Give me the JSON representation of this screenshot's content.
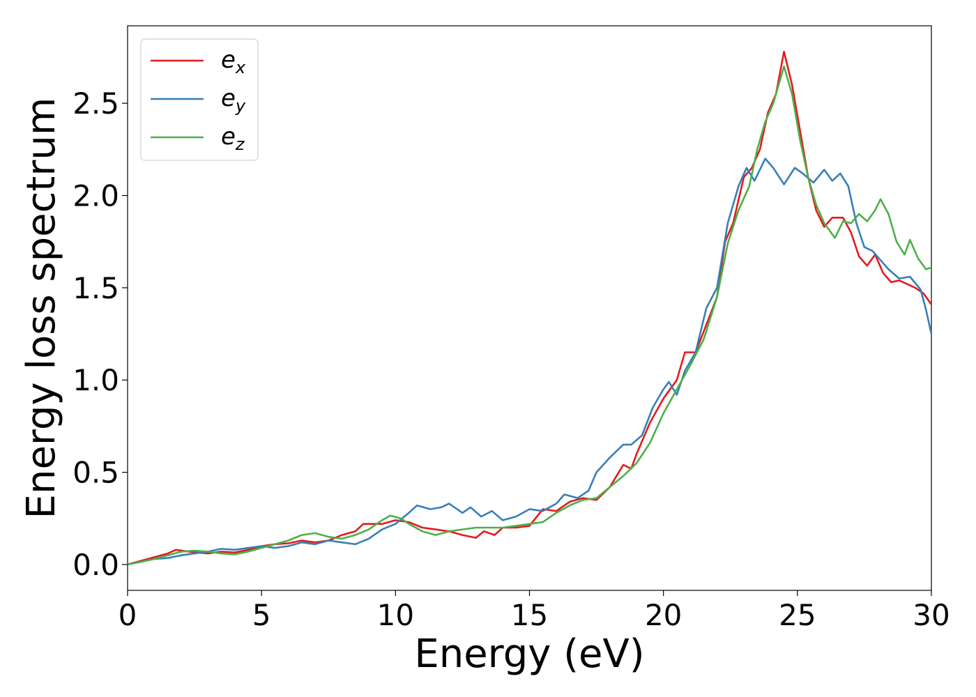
{
  "chart_data": {
    "type": "line",
    "xlabel": "Energy (eV)",
    "ylabel": "Energy loss spectrum",
    "xlim": [
      0,
      30
    ],
    "ylim": [
      -0.14,
      2.92
    ],
    "xticks": [
      0,
      5,
      10,
      15,
      20,
      25,
      30
    ],
    "xtick_labels": [
      "0",
      "5",
      "10",
      "15",
      "20",
      "25",
      "30"
    ],
    "yticks": [
      0.0,
      0.5,
      1.0,
      1.5,
      2.0,
      2.5
    ],
    "ytick_labels": [
      "0.0",
      "0.5",
      "1.0",
      "1.5",
      "2.0",
      "2.5"
    ],
    "grid": false,
    "legend_position": "top-left",
    "series": [
      {
        "name": "e",
        "subscript": "x",
        "color": "#e41a1c",
        "points": [
          [
            0,
            0
          ],
          [
            0.5,
            0.02
          ],
          [
            1,
            0.04
          ],
          [
            1.5,
            0.06
          ],
          [
            1.8,
            0.08
          ],
          [
            2.3,
            0.07
          ],
          [
            3,
            0.06
          ],
          [
            3.5,
            0.07
          ],
          [
            4,
            0.065
          ],
          [
            4.5,
            0.08
          ],
          [
            5,
            0.1
          ],
          [
            5.5,
            0.11
          ],
          [
            6,
            0.115
          ],
          [
            6.5,
            0.13
          ],
          [
            7,
            0.12
          ],
          [
            7.5,
            0.13
          ],
          [
            8,
            0.16
          ],
          [
            8.5,
            0.18
          ],
          [
            8.8,
            0.22
          ],
          [
            9.5,
            0.22
          ],
          [
            10,
            0.24
          ],
          [
            10.5,
            0.23
          ],
          [
            11,
            0.2
          ],
          [
            11.5,
            0.19
          ],
          [
            12,
            0.18
          ],
          [
            12.5,
            0.16
          ],
          [
            13,
            0.145
          ],
          [
            13.3,
            0.18
          ],
          [
            13.7,
            0.16
          ],
          [
            14,
            0.2
          ],
          [
            14.5,
            0.2
          ],
          [
            15,
            0.21
          ],
          [
            15.5,
            0.3
          ],
          [
            16,
            0.29
          ],
          [
            16.5,
            0.34
          ],
          [
            17,
            0.36
          ],
          [
            17.5,
            0.35
          ],
          [
            18,
            0.42
          ],
          [
            18.5,
            0.54
          ],
          [
            18.8,
            0.52
          ],
          [
            19,
            0.6
          ],
          [
            19.5,
            0.77
          ],
          [
            20,
            0.9
          ],
          [
            20.5,
            1.0
          ],
          [
            20.8,
            1.15
          ],
          [
            21.2,
            1.15
          ],
          [
            21.6,
            1.3
          ],
          [
            22,
            1.45
          ],
          [
            22.3,
            1.75
          ],
          [
            22.6,
            1.85
          ],
          [
            23,
            2.1
          ],
          [
            23.3,
            2.15
          ],
          [
            23.6,
            2.25
          ],
          [
            23.9,
            2.45
          ],
          [
            24.2,
            2.55
          ],
          [
            24.5,
            2.78
          ],
          [
            24.8,
            2.6
          ],
          [
            25.1,
            2.35
          ],
          [
            25.4,
            2.1
          ],
          [
            25.7,
            1.92
          ],
          [
            26,
            1.83
          ],
          [
            26.3,
            1.88
          ],
          [
            26.7,
            1.88
          ],
          [
            27,
            1.8
          ],
          [
            27.3,
            1.67
          ],
          [
            27.6,
            1.62
          ],
          [
            27.9,
            1.68
          ],
          [
            28.2,
            1.58
          ],
          [
            28.5,
            1.53
          ],
          [
            28.8,
            1.54
          ],
          [
            29.1,
            1.52
          ],
          [
            29.4,
            1.5
          ],
          [
            29.7,
            1.47
          ],
          [
            30,
            1.41
          ]
        ]
      },
      {
        "name": "e",
        "subscript": "y",
        "color": "#377eb8",
        "points": [
          [
            0,
            0
          ],
          [
            0.5,
            0.015
          ],
          [
            1,
            0.03
          ],
          [
            1.5,
            0.035
          ],
          [
            2,
            0.05
          ],
          [
            2.5,
            0.06
          ],
          [
            3,
            0.07
          ],
          [
            3.5,
            0.085
          ],
          [
            4,
            0.08
          ],
          [
            4.5,
            0.09
          ],
          [
            5,
            0.1
          ],
          [
            5.5,
            0.09
          ],
          [
            6,
            0.1
          ],
          [
            6.5,
            0.12
          ],
          [
            7,
            0.11
          ],
          [
            7.5,
            0.13
          ],
          [
            8,
            0.12
          ],
          [
            8.5,
            0.11
          ],
          [
            9,
            0.14
          ],
          [
            9.5,
            0.19
          ],
          [
            10,
            0.22
          ],
          [
            10.5,
            0.28
          ],
          [
            10.8,
            0.32
          ],
          [
            11.3,
            0.3
          ],
          [
            11.7,
            0.31
          ],
          [
            12,
            0.33
          ],
          [
            12.5,
            0.28
          ],
          [
            12.8,
            0.31
          ],
          [
            13.2,
            0.26
          ],
          [
            13.6,
            0.29
          ],
          [
            14,
            0.24
          ],
          [
            14.5,
            0.26
          ],
          [
            15,
            0.3
          ],
          [
            15.5,
            0.29
          ],
          [
            16,
            0.33
          ],
          [
            16.3,
            0.38
          ],
          [
            16.8,
            0.36
          ],
          [
            17.2,
            0.4
          ],
          [
            17.5,
            0.5
          ],
          [
            18,
            0.58
          ],
          [
            18.5,
            0.65
          ],
          [
            18.8,
            0.65
          ],
          [
            19.2,
            0.7
          ],
          [
            19.6,
            0.85
          ],
          [
            20,
            0.95
          ],
          [
            20.2,
            0.99
          ],
          [
            20.5,
            0.92
          ],
          [
            20.8,
            1.05
          ],
          [
            21.2,
            1.15
          ],
          [
            21.6,
            1.39
          ],
          [
            22,
            1.5
          ],
          [
            22.4,
            1.85
          ],
          [
            22.8,
            2.05
          ],
          [
            23.1,
            2.15
          ],
          [
            23.4,
            2.08
          ],
          [
            23.8,
            2.2
          ],
          [
            24.1,
            2.15
          ],
          [
            24.5,
            2.06
          ],
          [
            24.9,
            2.15
          ],
          [
            25.2,
            2.12
          ],
          [
            25.6,
            2.07
          ],
          [
            26,
            2.14
          ],
          [
            26.3,
            2.08
          ],
          [
            26.6,
            2.12
          ],
          [
            26.9,
            2.05
          ],
          [
            27.2,
            1.85
          ],
          [
            27.5,
            1.72
          ],
          [
            27.8,
            1.7
          ],
          [
            28.1,
            1.65
          ],
          [
            28.4,
            1.6
          ],
          [
            28.8,
            1.55
          ],
          [
            29.2,
            1.56
          ],
          [
            29.6,
            1.49
          ],
          [
            29.8,
            1.38
          ],
          [
            30,
            1.25
          ]
        ]
      },
      {
        "name": "e",
        "subscript": "z",
        "color": "#4daf4a",
        "points": [
          [
            0,
            0
          ],
          [
            0.5,
            0.015
          ],
          [
            1,
            0.03
          ],
          [
            1.5,
            0.05
          ],
          [
            2,
            0.07
          ],
          [
            2.5,
            0.075
          ],
          [
            3,
            0.07
          ],
          [
            3.5,
            0.06
          ],
          [
            4,
            0.055
          ],
          [
            4.5,
            0.07
          ],
          [
            5,
            0.09
          ],
          [
            5.5,
            0.11
          ],
          [
            6,
            0.13
          ],
          [
            6.5,
            0.16
          ],
          [
            7,
            0.17
          ],
          [
            7.5,
            0.15
          ],
          [
            8,
            0.14
          ],
          [
            8.5,
            0.16
          ],
          [
            9,
            0.19
          ],
          [
            9.5,
            0.24
          ],
          [
            9.8,
            0.265
          ],
          [
            10.2,
            0.25
          ],
          [
            10.5,
            0.22
          ],
          [
            11,
            0.18
          ],
          [
            11.5,
            0.16
          ],
          [
            12,
            0.18
          ],
          [
            12.5,
            0.19
          ],
          [
            13,
            0.2
          ],
          [
            13.5,
            0.2
          ],
          [
            14,
            0.2
          ],
          [
            14.5,
            0.21
          ],
          [
            15,
            0.22
          ],
          [
            15.5,
            0.23
          ],
          [
            16,
            0.28
          ],
          [
            16.5,
            0.32
          ],
          [
            17,
            0.35
          ],
          [
            17.5,
            0.36
          ],
          [
            18,
            0.42
          ],
          [
            18.5,
            0.48
          ],
          [
            19,
            0.55
          ],
          [
            19.5,
            0.66
          ],
          [
            20,
            0.82
          ],
          [
            20.5,
            0.95
          ],
          [
            21,
            1.08
          ],
          [
            21.5,
            1.22
          ],
          [
            22,
            1.45
          ],
          [
            22.4,
            1.74
          ],
          [
            22.8,
            1.92
          ],
          [
            23.2,
            2.05
          ],
          [
            23.5,
            2.25
          ],
          [
            23.8,
            2.4
          ],
          [
            24.1,
            2.5
          ],
          [
            24.5,
            2.7
          ],
          [
            24.8,
            2.55
          ],
          [
            25.1,
            2.3
          ],
          [
            25.4,
            2.1
          ],
          [
            25.7,
            1.95
          ],
          [
            26,
            1.85
          ],
          [
            26.4,
            1.77
          ],
          [
            26.7,
            1.86
          ],
          [
            27,
            1.85
          ],
          [
            27.3,
            1.9
          ],
          [
            27.6,
            1.86
          ],
          [
            27.9,
            1.92
          ],
          [
            28.1,
            1.98
          ],
          [
            28.4,
            1.9
          ],
          [
            28.7,
            1.75
          ],
          [
            29,
            1.68
          ],
          [
            29.2,
            1.76
          ],
          [
            29.5,
            1.66
          ],
          [
            29.8,
            1.6
          ],
          [
            30,
            1.61
          ]
        ]
      }
    ]
  }
}
